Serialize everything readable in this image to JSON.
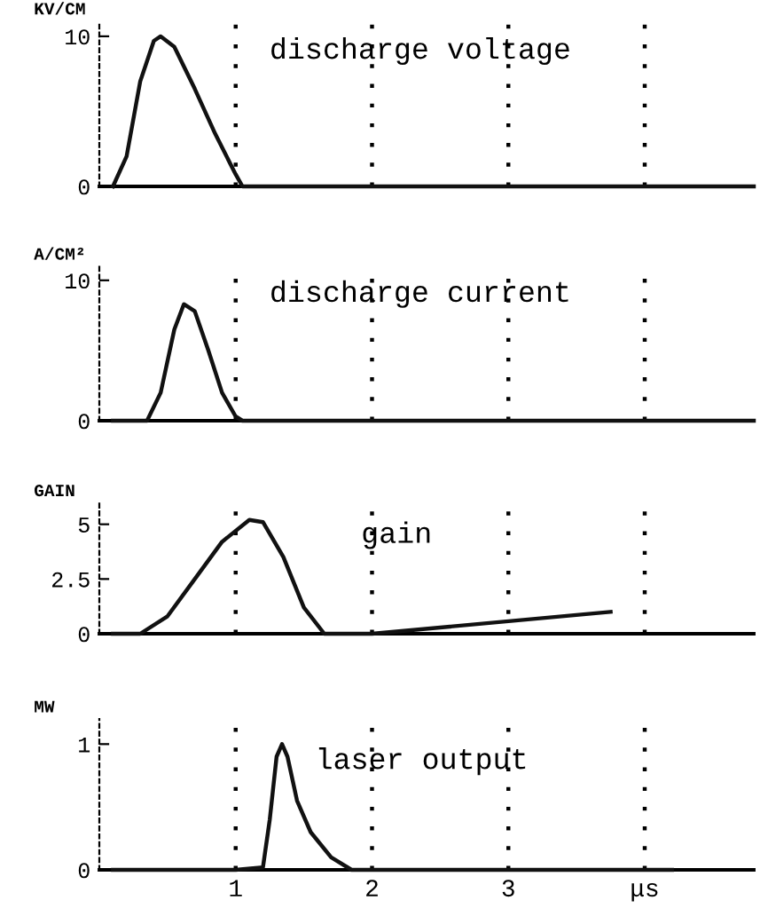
{
  "chart_data": [
    {
      "type": "line",
      "title": "discharge voltage",
      "ylabel": "KV/CM",
      "x": [
        0.1,
        0.2,
        0.3,
        0.4,
        0.45,
        0.55,
        0.7,
        0.85,
        1.0,
        1.05,
        4.8
      ],
      "values": [
        0,
        2,
        7,
        9.7,
        10,
        9.3,
        6.5,
        3.5,
        0.8,
        0,
        0
      ],
      "color": "#111111",
      "xlim": [
        0,
        4.8
      ],
      "xticks": [
        {
          "value": 1,
          "label": null
        },
        {
          "value": 2,
          "label": null
        },
        {
          "value": 3,
          "label": null
        },
        {
          "value": 4,
          "label": null
        }
      ],
      "ylim": [
        0,
        11
      ],
      "yticks": [
        0,
        10
      ],
      "grid": "x",
      "tick_labels": "y",
      "line_style": "solid"
    },
    {
      "type": "line",
      "title": "discharge current",
      "ylabel": "A/CM²",
      "x": [
        0.1,
        0.35,
        0.45,
        0.55,
        0.62,
        0.7,
        0.8,
        0.9,
        1.0,
        1.05,
        4.8
      ],
      "values": [
        0,
        0,
        2,
        6.5,
        8.3,
        7.8,
        5,
        2,
        0.3,
        0,
        0
      ],
      "color": "#111111",
      "xlim": [
        0,
        4.8
      ],
      "xticks": [
        {
          "value": 1,
          "label": null
        },
        {
          "value": 2,
          "label": null
        },
        {
          "value": 3,
          "label": null
        },
        {
          "value": 4,
          "label": null
        }
      ],
      "ylim": [
        0,
        11
      ],
      "yticks": [
        0,
        10
      ],
      "grid": "x",
      "tick_labels": "y",
      "line_style": "solid"
    },
    {
      "type": "line",
      "title": "gain",
      "ylabel": "GAIN",
      "x": [
        0.1,
        0.3,
        0.5,
        0.7,
        0.9,
        1.1,
        1.2,
        1.35,
        1.5,
        1.65,
        2.0,
        3.75
      ],
      "values": [
        0,
        0,
        0.8,
        2.5,
        4.2,
        5.2,
        5.1,
        3.5,
        1.2,
        0,
        0,
        1.0
      ],
      "color": "#111111",
      "xlim": [
        0,
        4.8
      ],
      "xticks": [
        {
          "value": 1,
          "label": null
        },
        {
          "value": 2,
          "label": null
        },
        {
          "value": 3,
          "label": null
        },
        {
          "value": 4,
          "label": null
        }
      ],
      "ylim": [
        0,
        6
      ],
      "yticks": [
        0,
        {
          "value": 2.5,
          "label": "2.5"
        },
        5
      ],
      "grid": "x",
      "tick_labels": "y",
      "line_style": "solid"
    },
    {
      "type": "line",
      "title": "laser output",
      "ylabel": "MW",
      "x": [
        0.1,
        1.0,
        1.2,
        1.25,
        1.3,
        1.34,
        1.38,
        1.45,
        1.55,
        1.7,
        1.85,
        4.2
      ],
      "values": [
        0,
        0,
        0.02,
        0.4,
        0.9,
        1.0,
        0.9,
        0.55,
        0.3,
        0.1,
        0,
        0
      ],
      "color": "#111111",
      "xlim": [
        0,
        4.8
      ],
      "xticks": [
        1,
        2,
        3,
        {
          "value": 4,
          "label": "μs"
        }
      ],
      "ylim": [
        0,
        1.2
      ],
      "yticks": [
        0,
        1
      ],
      "grid": "x",
      "line_style": "solid"
    }
  ]
}
